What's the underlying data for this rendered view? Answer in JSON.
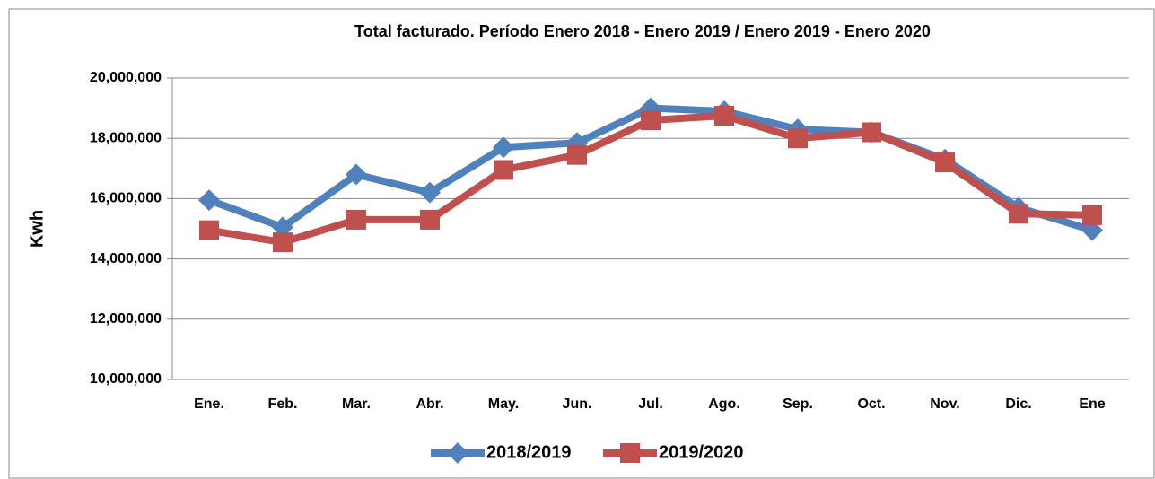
{
  "chart_data": {
    "type": "line",
    "title": "Total facturado. Período Enero 2018 - Enero 2019 / Enero 2019 - Enero 2020",
    "y_label": "Kwh",
    "categories": [
      "Ene.",
      "Feb.",
      "Mar.",
      "Abr.",
      "May.",
      "Jun.",
      "Jul.",
      "Ago.",
      "Sep.",
      "Oct.",
      "Nov.",
      "Dic.",
      "Ene"
    ],
    "series": [
      {
        "name": "2018/2019",
        "color": "#4f81bd",
        "marker": "diamond",
        "values": [
          15950000,
          15050000,
          16800000,
          16200000,
          17700000,
          17850000,
          19000000,
          18900000,
          18300000,
          18200000,
          17300000,
          15700000,
          14950000
        ]
      },
      {
        "name": "2019/2020",
        "color": "#c0504d",
        "marker": "square",
        "values": [
          14950000,
          14550000,
          15300000,
          15300000,
          16950000,
          17450000,
          18600000,
          18750000,
          18000000,
          18200000,
          17200000,
          15500000,
          15450000
        ]
      }
    ],
    "ylim": [
      10000000,
      20000000
    ],
    "yticks": [
      {
        "value": 10000000,
        "label": "10,000,000"
      },
      {
        "value": 12000000,
        "label": "12,000,000"
      },
      {
        "value": 14000000,
        "label": "14,000,000"
      },
      {
        "value": 16000000,
        "label": "16,000,000"
      },
      {
        "value": 18000000,
        "label": "18,000,000"
      },
      {
        "value": 20000000,
        "label": "20,000,000"
      }
    ],
    "grid": true,
    "legend": "bottom"
  }
}
